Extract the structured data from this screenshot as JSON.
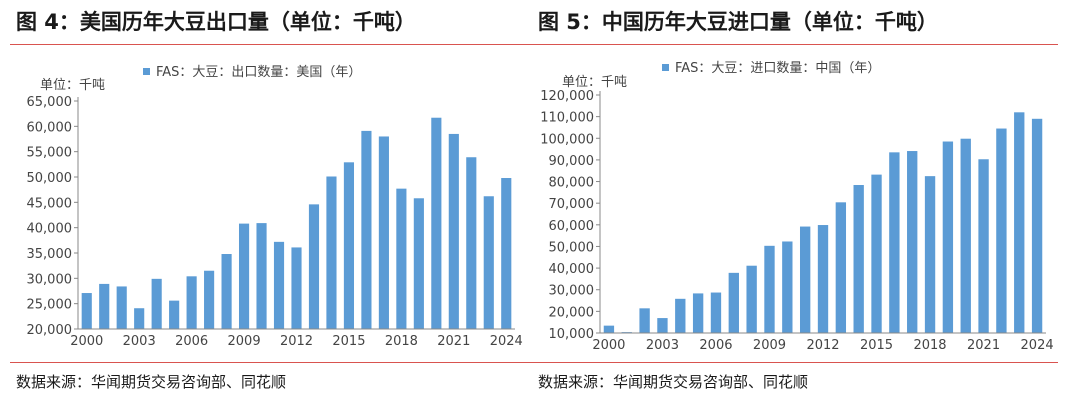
{
  "source_label": "数据来源：华闻期货交易咨询部、同花顺",
  "colors": {
    "bar": "#5b9bd5",
    "rule": "#d9534f",
    "axis": "#888888",
    "tick_text": "#444444"
  },
  "chart_data": [
    {
      "type": "bar",
      "title": "图 4：美国历年大豆出口量（单位：千吨）",
      "unit_label": "单位：千吨",
      "legend": "FAS：大豆：出口数量：美国（年）",
      "legend_position": "top",
      "grid": false,
      "ylim": [
        20000,
        65000
      ],
      "ytick_labels": [
        "65,000",
        "60,000",
        "55,000",
        "50,000",
        "45,000",
        "40,000",
        "35,000",
        "30,000",
        "25,000",
        "20,000"
      ],
      "xtick_labels": [
        "2000",
        "2003",
        "2006",
        "2009",
        "2012",
        "2015",
        "2018",
        "2021",
        "2024"
      ],
      "categories": [
        2000,
        2001,
        2002,
        2003,
        2004,
        2005,
        2006,
        2007,
        2008,
        2009,
        2010,
        2011,
        2012,
        2013,
        2014,
        2015,
        2016,
        2017,
        2018,
        2019,
        2020,
        2021,
        2022,
        2023,
        2024
      ],
      "values": [
        27100,
        28900,
        28400,
        24100,
        29900,
        25600,
        30400,
        31500,
        34800,
        40800,
        40900,
        37200,
        36100,
        44600,
        50100,
        52900,
        59100,
        58000,
        47700,
        45800,
        61700,
        58500,
        53900,
        46200,
        49800
      ]
    },
    {
      "type": "bar",
      "title": "图 5：中国历年大豆进口量（单位：千吨）",
      "unit_label": "单位：千吨",
      "legend": "FAS：大豆：进口数量：中国（年）",
      "legend_position": "top",
      "grid": false,
      "ylim": [
        10000,
        120000
      ],
      "ytick_labels": [
        "120,000",
        "110,000",
        "100,000",
        "90,000",
        "80,000",
        "70,000",
        "60,000",
        "50,000",
        "40,000",
        "30,000",
        "20,000",
        "10,000"
      ],
      "xtick_labels": [
        "2000",
        "2003",
        "2006",
        "2009",
        "2012",
        "2015",
        "2018",
        "2021",
        "2024"
      ],
      "categories": [
        2000,
        2001,
        2002,
        2003,
        2004,
        2005,
        2006,
        2007,
        2008,
        2009,
        2010,
        2011,
        2012,
        2013,
        2014,
        2015,
        2016,
        2017,
        2018,
        2019,
        2020,
        2021,
        2022,
        2023,
        2024
      ],
      "values": [
        13400,
        10400,
        21400,
        16900,
        25800,
        28300,
        28700,
        37800,
        41100,
        50300,
        52300,
        59200,
        59900,
        70400,
        78400,
        83200,
        93500,
        94100,
        82500,
        98500,
        99800,
        90300,
        104500,
        112000,
        109000
      ]
    }
  ]
}
